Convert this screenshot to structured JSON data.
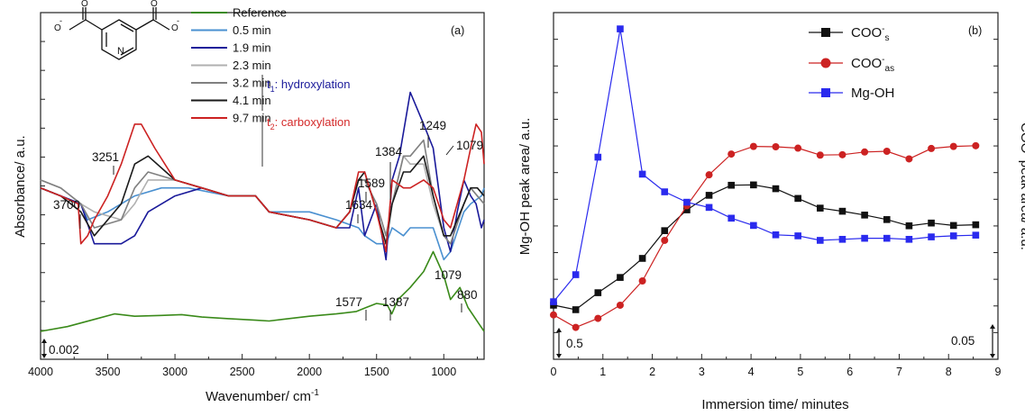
{
  "chart_data": [
    {
      "type": "line",
      "panel_label": "(a)",
      "xlabel": "Wavenumber/ cm",
      "xlabel_superscript": "-1",
      "ylabel": "Absorbance/ a.u.",
      "xlim": [
        4000,
        700
      ],
      "x_reversed": true,
      "xticks": [
        4000,
        3500,
        3000,
        2500,
        2000,
        1500,
        1000
      ],
      "scale_bar": "0.002",
      "molecule_charges": [
        "-",
        "-"
      ],
      "groups": [
        {
          "prefix": "t",
          "subscript": "1",
          "text": ": hydroxylation",
          "color": "#1a1a9a"
        },
        {
          "prefix": "t",
          "subscript": "2",
          "text": ": carboxylation",
          "color": "#d42a2a"
        }
      ],
      "series": [
        {
          "name": "Reference",
          "color": "#3a8a1a",
          "x": [
            4000,
            3800,
            3600,
            3450,
            3300,
            3100,
            2950,
            2800,
            2600,
            2400,
            2300,
            2200,
            2000,
            1800,
            1650,
            1577,
            1500,
            1420,
            1387,
            1340,
            1250,
            1150,
            1079,
            1000,
            950,
            880,
            820,
            740,
            700
          ],
          "y": [
            0.0,
            0.0006,
            0.0015,
            0.0022,
            0.0019,
            0.002,
            0.0021,
            0.0018,
            0.0016,
            0.0014,
            0.0013,
            0.0015,
            0.0019,
            0.0022,
            0.0025,
            0.003,
            0.0035,
            0.0033,
            0.0022,
            0.004,
            0.0055,
            0.0075,
            0.01,
            0.007,
            0.004,
            0.0055,
            0.003,
            0.001,
            0.0
          ]
        },
        {
          "name": "0.5 min",
          "color": "#4a90d0",
          "x": [
            4000,
            3850,
            3700,
            3650,
            3500,
            3300,
            3100,
            2900,
            2600,
            2400,
            2300,
            2000,
            1800,
            1634,
            1589,
            1500,
            1430,
            1384,
            1300,
            1249,
            1150,
            1079,
            1000,
            950,
            850,
            800,
            720,
            700
          ],
          "y": [
            0.018,
            0.017,
            0.016,
            0.014,
            0.015,
            0.017,
            0.018,
            0.018,
            0.017,
            0.017,
            0.015,
            0.015,
            0.014,
            0.013,
            0.012,
            0.011,
            0.011,
            0.013,
            0.012,
            0.013,
            0.013,
            0.013,
            0.009,
            0.01,
            0.015,
            0.016,
            0.017,
            0.018
          ]
        },
        {
          "name": "1.9 min",
          "color": "#1a1a9a",
          "x": [
            4000,
            3850,
            3700,
            3600,
            3400,
            3300,
            3200,
            3000,
            2800,
            2600,
            2400,
            2300,
            2000,
            1800,
            1700,
            1634,
            1589,
            1500,
            1430,
            1384,
            1330,
            1249,
            1150,
            1079,
            1000,
            950,
            900,
            850,
            800,
            760,
            720,
            700
          ],
          "y": [
            0.018,
            0.017,
            0.016,
            0.011,
            0.011,
            0.012,
            0.015,
            0.017,
            0.018,
            0.017,
            0.017,
            0.015,
            0.014,
            0.013,
            0.013,
            0.018,
            0.012,
            0.016,
            0.009,
            0.019,
            0.022,
            0.03,
            0.026,
            0.023,
            0.013,
            0.01,
            0.015,
            0.019,
            0.017,
            0.016,
            0.013,
            0.014
          ]
        },
        {
          "name": "2.3 min",
          "color": "#b0b0b0",
          "x": [
            4000,
            3850,
            3700,
            3600,
            3400,
            3300,
            3200,
            3000,
            2800,
            2600,
            2400,
            2300,
            2000,
            1800,
            1700,
            1634,
            1589,
            1500,
            1430,
            1384,
            1300,
            1249,
            1150,
            1079,
            1000,
            950,
            850,
            800,
            750,
            700
          ],
          "y": [
            0.019,
            0.018,
            0.016,
            0.015,
            0.014,
            0.016,
            0.019,
            0.019,
            0.018,
            0.017,
            0.017,
            0.015,
            0.014,
            0.013,
            0.015,
            0.019,
            0.019,
            0.016,
            0.012,
            0.016,
            0.022,
            0.021,
            0.021,
            0.016,
            0.012,
            0.011,
            0.016,
            0.018,
            0.017,
            0.016
          ]
        },
        {
          "name": "3.2 min",
          "color": "#808080",
          "x": [
            4000,
            3850,
            3700,
            3600,
            3400,
            3300,
            3200,
            3000,
            2800,
            2600,
            2400,
            2300,
            2000,
            1800,
            1700,
            1634,
            1589,
            1500,
            1430,
            1384,
            1300,
            1249,
            1150,
            1079,
            1000,
            950,
            850,
            800,
            750,
            700
          ],
          "y": [
            0.019,
            0.018,
            0.016,
            0.013,
            0.014,
            0.018,
            0.02,
            0.019,
            0.018,
            0.017,
            0.017,
            0.015,
            0.014,
            0.013,
            0.015,
            0.019,
            0.019,
            0.016,
            0.012,
            0.016,
            0.022,
            0.022,
            0.024,
            0.017,
            0.012,
            0.011,
            0.016,
            0.018,
            0.017,
            0.016
          ]
        },
        {
          "name": "4.1 min",
          "color": "#1a1a1a",
          "x": [
            4000,
            3850,
            3700,
            3600,
            3400,
            3300,
            3200,
            3000,
            2800,
            2600,
            2400,
            2300,
            2000,
            1800,
            1700,
            1634,
            1589,
            1500,
            1430,
            1384,
            1300,
            1249,
            1150,
            1079,
            1000,
            950,
            850,
            800,
            750,
            700
          ],
          "y": [
            0.018,
            0.017,
            0.015,
            0.012,
            0.016,
            0.021,
            0.022,
            0.019,
            0.018,
            0.017,
            0.017,
            0.015,
            0.014,
            0.013,
            0.015,
            0.019,
            0.02,
            0.015,
            0.011,
            0.016,
            0.02,
            0.02,
            0.022,
            0.017,
            0.012,
            0.012,
            0.016,
            0.018,
            0.018,
            0.017
          ]
        },
        {
          "name": "9.7 min",
          "color": "#cc2222",
          "x": [
            4000,
            3850,
            3720,
            3700,
            3650,
            3600,
            3500,
            3400,
            3300,
            3251,
            3150,
            3000,
            2800,
            2600,
            2400,
            2300,
            2000,
            1800,
            1700,
            1634,
            1589,
            1500,
            1430,
            1384,
            1300,
            1249,
            1150,
            1079,
            1000,
            950,
            850,
            800,
            760,
            720,
            700
          ],
          "y": [
            0.018,
            0.017,
            0.016,
            0.011,
            0.012,
            0.014,
            0.017,
            0.021,
            0.026,
            0.026,
            0.023,
            0.019,
            0.018,
            0.017,
            0.017,
            0.015,
            0.014,
            0.013,
            0.015,
            0.02,
            0.02,
            0.015,
            0.01,
            0.019,
            0.018,
            0.018,
            0.019,
            0.018,
            0.014,
            0.013,
            0.019,
            0.023,
            0.026,
            0.025,
            0.021
          ]
        }
      ],
      "annotations": [
        "3700",
        "3251",
        "1634",
        "1589",
        "1384",
        "1249",
        "1079",
        "1577",
        "1387",
        "1079",
        "880"
      ]
    },
    {
      "type": "line",
      "panel_label": "(b)",
      "xlabel": "Immersion time/ minutes",
      "ylabel": "Mg-OH peak area/ a.u.",
      "ylabel_right": "COO",
      "ylabel_right_superscript": "-",
      "ylabel_right_suffix": " peak area/ a.u.",
      "xlim": [
        0,
        9
      ],
      "xticks": [
        0,
        1,
        2,
        3,
        4,
        5,
        6,
        7,
        8,
        9
      ],
      "ylim": [
        0,
        10
      ],
      "scale_bar_left": "0.5",
      "scale_bar_right": "0.05",
      "series": [
        {
          "name": "COO",
          "name_sup": "-",
          "name_sub": "s",
          "marker": "square",
          "color": "#111111",
          "x": [
            0,
            0.45,
            0.9,
            1.35,
            1.8,
            2.25,
            2.7,
            3.15,
            3.6,
            4.05,
            4.5,
            4.95,
            5.4,
            5.85,
            6.3,
            6.75,
            7.2,
            7.65,
            8.1,
            8.55
          ],
          "y": [
            1.56,
            1.43,
            1.92,
            2.36,
            2.91,
            3.71,
            4.31,
            4.73,
            5.02,
            5.03,
            4.92,
            4.64,
            4.36,
            4.27,
            4.16,
            4.03,
            3.85,
            3.93,
            3.86,
            3.88
          ]
        },
        {
          "name": "COO",
          "name_sup": "-",
          "name_sub": "as",
          "marker": "circle",
          "color": "#cc2222",
          "x": [
            0,
            0.45,
            0.9,
            1.35,
            1.8,
            2.25,
            2.7,
            3.15,
            3.6,
            4.05,
            4.5,
            4.95,
            5.4,
            5.85,
            6.3,
            6.75,
            7.2,
            7.65,
            8.1,
            8.55
          ],
          "y": [
            1.28,
            0.92,
            1.18,
            1.56,
            2.26,
            3.43,
            4.43,
            5.32,
            5.92,
            6.14,
            6.13,
            6.09,
            5.89,
            5.9,
            5.98,
            6.0,
            5.78,
            6.08,
            6.14,
            6.16
          ]
        },
        {
          "name": "Mg-OH",
          "marker": "square",
          "color": "#2a2aee",
          "x": [
            0,
            0.45,
            0.9,
            1.35,
            1.8,
            2.25,
            2.7,
            3.15,
            3.6,
            4.05,
            4.5,
            4.95,
            5.4,
            5.85,
            6.3,
            6.75,
            7.2,
            7.65,
            8.1,
            8.55
          ],
          "y": [
            1.66,
            2.44,
            5.83,
            9.53,
            5.34,
            4.83,
            4.53,
            4.38,
            4.07,
            3.86,
            3.59,
            3.56,
            3.43,
            3.46,
            3.49,
            3.49,
            3.46,
            3.53,
            3.56,
            3.58
          ]
        }
      ]
    }
  ]
}
